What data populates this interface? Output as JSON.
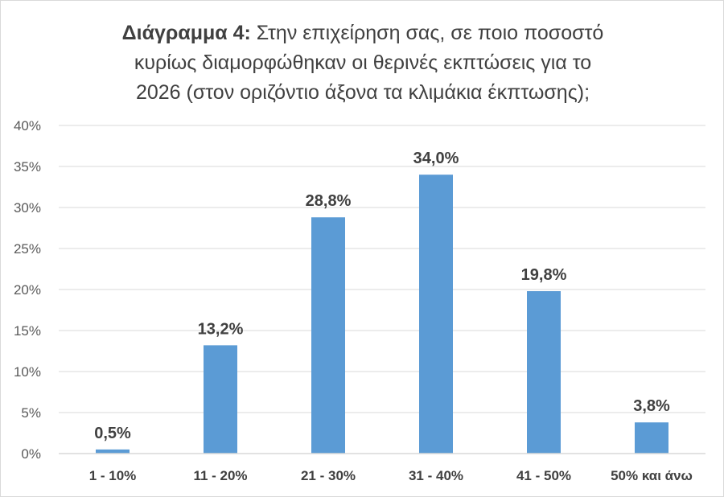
{
  "chart_data": {
    "type": "bar",
    "title_prefix": "Διάγραμμα 4:",
    "title_lines": [
      "Στην επιχείρηση σας, σε ποιο ποσοστό",
      "κυρίως διαμορφώθηκαν οι θερινές  εκπτώσεις για το",
      "2026 (στον οριζόντιο άξονα τα κλιμάκια έκπτωσης);"
    ],
    "categories": [
      "1 - 10%",
      "11 - 20%",
      "21 - 30%",
      "31 - 40%",
      "41 - 50%",
      "50% και άνω"
    ],
    "values": [
      0.5,
      13.2,
      28.8,
      34.0,
      19.8,
      3.8
    ],
    "data_labels": [
      "0,5%",
      "13,2%",
      "28,8%",
      "34,0%",
      "19,8%",
      "3,8%"
    ],
    "y_ticks": [
      "0%",
      "5%",
      "10%",
      "15%",
      "20%",
      "25%",
      "30%",
      "35%",
      "40%"
    ],
    "ylim": [
      0,
      40
    ],
    "grid": true,
    "bar_color": "#5b9bd5",
    "gridline_color": "#d9d9d9"
  }
}
